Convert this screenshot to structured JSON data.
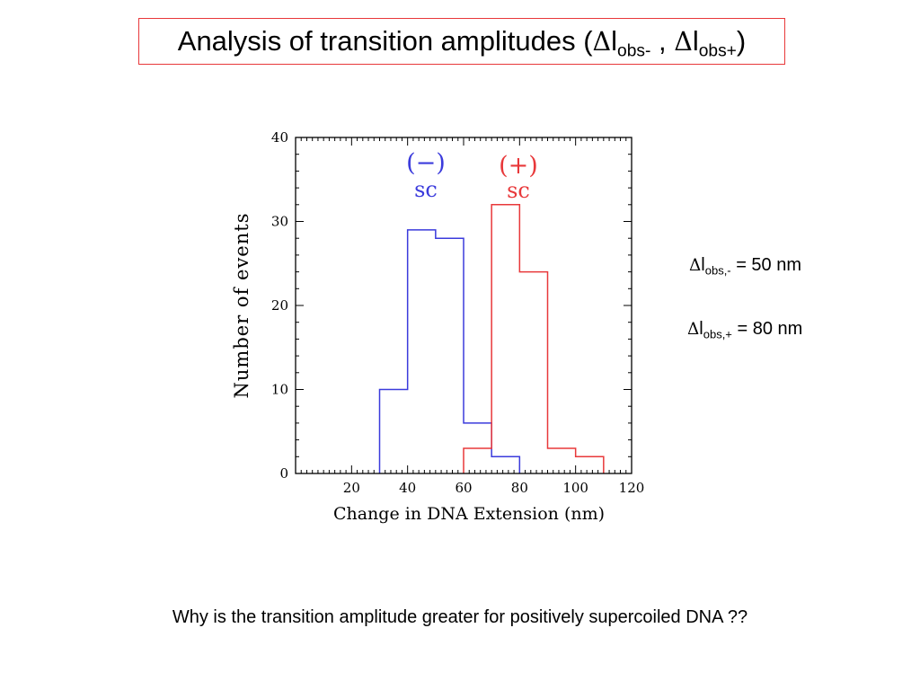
{
  "slide": {
    "title_prefix": "Analysis of transition amplitudes (",
    "title_delta": "Δ",
    "title_l1": "l",
    "title_sub1": "obs-",
    "title_sep": " , ",
    "title_delta2": "Δ",
    "title_l2": "l",
    "title_sub2": "obs+",
    "title_suffix": ")",
    "eq1": {
      "delta": "Δ",
      "l": "l",
      "sub": "obs,-",
      "rest": " = 50 nm"
    },
    "eq2": {
      "delta": "Δ",
      "l": "l",
      "sub": "obs,+",
      "rest": " = 80 nm"
    },
    "question": "Why is the transition amplitude greater for positively supercoiled DNA ??"
  },
  "chart_data": {
    "type": "histogram",
    "xlabel": "Change in DNA Extension (nm)",
    "ylabel": "Number of events",
    "xlim": [
      0,
      120
    ],
    "ylim": [
      0,
      40
    ],
    "x_ticks": [
      20,
      40,
      60,
      80,
      100,
      120
    ],
    "y_ticks": [
      0,
      10,
      20,
      30,
      40
    ],
    "bin_width": 10,
    "series": [
      {
        "name_line1": "(−)",
        "name_line2": "sc",
        "color": "#3b3bdc",
        "bins": [
          {
            "x0": 30,
            "x1": 40,
            "count": 10
          },
          {
            "x0": 40,
            "x1": 50,
            "count": 29
          },
          {
            "x0": 50,
            "x1": 60,
            "count": 28
          },
          {
            "x0": 60,
            "x1": 70,
            "count": 6
          },
          {
            "x0": 70,
            "x1": 80,
            "count": 2
          }
        ]
      },
      {
        "name_line1": "(+)",
        "name_line2": "sc",
        "color": "#e8383a",
        "bins": [
          {
            "x0": 60,
            "x1": 70,
            "count": 3
          },
          {
            "x0": 70,
            "x1": 80,
            "count": 32
          },
          {
            "x0": 80,
            "x1": 90,
            "count": 24
          },
          {
            "x0": 90,
            "x1": 100,
            "count": 3
          },
          {
            "x0": 100,
            "x1": 110,
            "count": 2
          }
        ]
      }
    ]
  }
}
